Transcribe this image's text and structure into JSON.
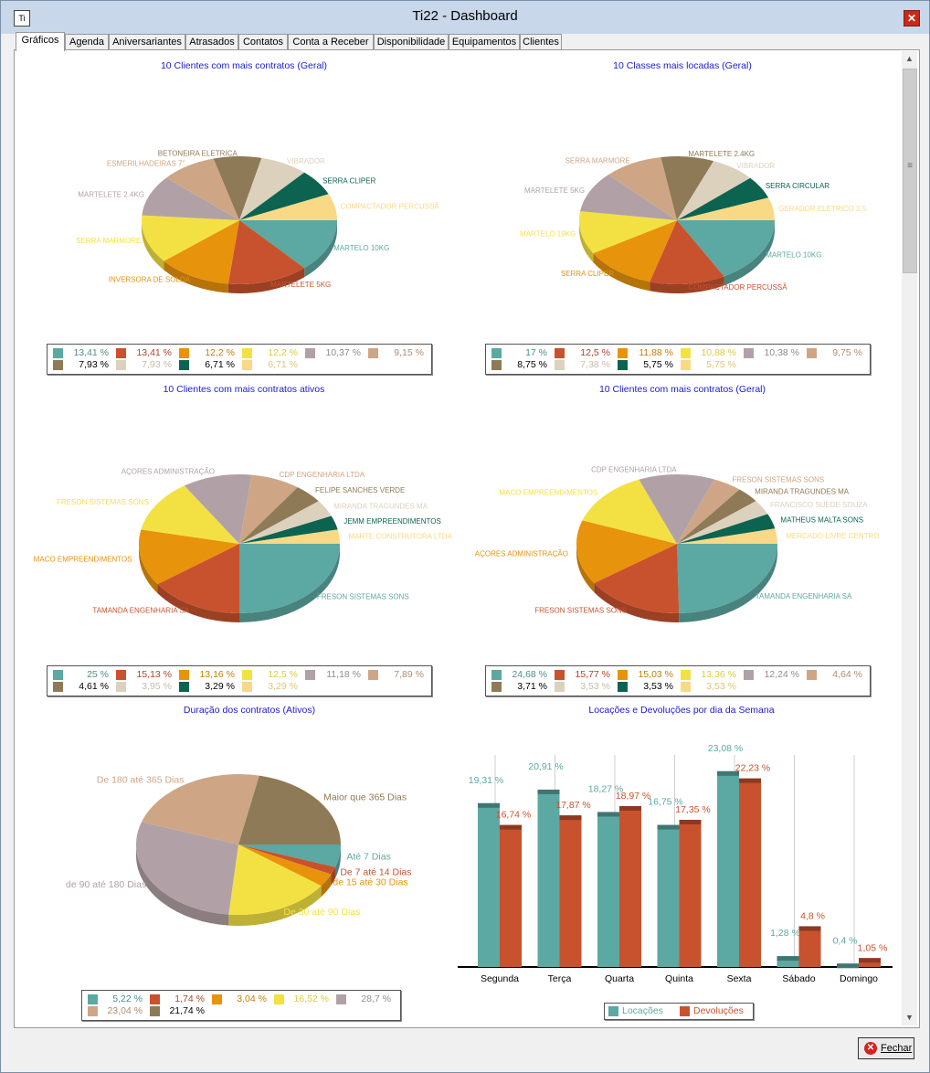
{
  "window": {
    "title": "Ti22 - Dashboard",
    "app_icon": "Ti",
    "close_glyph": "✕"
  },
  "tabs": [
    "Gráficos",
    "Agenda",
    "Aniversariantes",
    "Atrasados",
    "Contatos",
    "Conta a Receber",
    "Disponibilidade",
    "Equipamentos",
    "Clientes"
  ],
  "footer": {
    "close_label": "Fechar"
  },
  "colors": {
    "c1": "#5ca8a2",
    "c2": "#c8522e",
    "c3": "#e8930c",
    "c4": "#f3e144",
    "c5": "#b1a1a6",
    "c6": "#cea686",
    "c7": "#8e7a56",
    "c8": "#dcd1bd",
    "c9": "#0c6350",
    "c10": "#f9d985"
  },
  "chart_data": [
    {
      "type": "pie",
      "title": "10 Clientes com mais contratos (Geral)",
      "labels": [
        "MARTELO 10KG",
        "MARTELETE 5KG",
        "INVERSORA DE SOLDA",
        "SERRA MARMORE",
        "MARTELETE 2.4KG",
        "ESMERILHADEIRAS 7\"",
        "BETONEIRA ELETRICA",
        "VIBRADOR",
        "SERRA CLIPER",
        "COMPACTADOR PERCUSSÃ"
      ],
      "values": [
        13.41,
        13.41,
        12.2,
        12.2,
        10.37,
        9.15,
        7.93,
        7.93,
        6.71,
        6.71
      ],
      "legend": [
        "13,41 %",
        "13,41 %",
        "12,2 %",
        "12,2 %",
        "10,37 %",
        "9,15 %",
        "7,93 %",
        "7,93 %",
        "6,71 %",
        "6,71 %"
      ]
    },
    {
      "type": "pie",
      "title": "10 Classes mais locadas (Geral)",
      "labels": [
        "MARTELO 10KG",
        "COMPACTADOR PERCUSSÃ",
        "SERRA CLIPER",
        "MARTELO 19KG",
        "MARTELETE 5KG",
        "SERRA MARMORE",
        "MARTELETE 2.4KG",
        "VIBRADOR",
        "SERRA CIRCULAR",
        "GERADOR ELETRICO 3.5"
      ],
      "values": [
        17,
        12.5,
        11.88,
        10.88,
        10.38,
        9.75,
        8.75,
        7.38,
        5.75,
        5.75
      ],
      "legend": [
        "17 %",
        "12,5 %",
        "11,88 %",
        "10,88 %",
        "10,38 %",
        "9,75 %",
        "8,75 %",
        "7,38 %",
        "5,75 %",
        "5,75 %"
      ]
    },
    {
      "type": "pie",
      "title": "10 Clientes com mais contratos ativos",
      "labels": [
        "FRESON SISTEMAS SONS",
        "TAMANDA ENGENHARIA SA",
        "MACO EMPREENDIMENTOS",
        "FRESON SISTEMAS SONS",
        "AÇORES ADMINISTRAÇÃO",
        "CDP ENGENHARIA LTDA",
        "FELIPE SANCHES VERDE",
        "MIRANDA TRAGUNDES MA",
        "JEMM EMPREENDIMENTOS",
        "MARTE CONSTRUTORA LTDA"
      ],
      "values": [
        25,
        15.13,
        13.16,
        12.5,
        11.18,
        7.89,
        4.61,
        3.95,
        3.29,
        3.29
      ],
      "legend": [
        "25 %",
        "15,13 %",
        "13,16 %",
        "12,5 %",
        "11,18 %",
        "7,89 %",
        "4,61 %",
        "3,95 %",
        "3,29 %",
        "3,29 %"
      ]
    },
    {
      "type": "pie",
      "title": "10 Clientes com mais contratos (Geral)",
      "labels": [
        "TAMANDA ENGENHARIA SA",
        "FRESON SISTEMAS SONS",
        "AÇORES ADMINISTRAÇÃO",
        "MACO EMPREENDIMENTOS",
        "CDP ENGENHARIA LTDA",
        "FRESON SISTEMAS SONS",
        "MIRANDA TRAGUNDES MA",
        "FRANCISCO SUEDE SOUZA",
        "MATHEUS MALTA SONS",
        "MERCADO LIVRE CENTRO"
      ],
      "values": [
        24.68,
        15.77,
        15.03,
        13.36,
        12.24,
        4.64,
        3.71,
        3.53,
        3.53,
        3.53
      ],
      "legend": [
        "24,68 %",
        "15,77 %",
        "15,03 %",
        "13,36 %",
        "12,24 %",
        "4,64 %",
        "3,71 %",
        "3,53 %",
        "3,53 %",
        "3,53 %"
      ]
    },
    {
      "type": "pie",
      "title": "Duração dos contratos (Ativos)",
      "labels": [
        "Até 7 Dias",
        "De 7 até 14 Dias",
        "de 15 até 30 Dias",
        "De 30 até 90 Dias",
        "de 90 até 180 Dias",
        "De 180 até 365 Dias",
        "Maior que 365 Dias"
      ],
      "values": [
        5.22,
        1.74,
        3.04,
        16.52,
        28.7,
        23.04,
        21.74
      ],
      "legend": [
        "5,22 %",
        "1,74 %",
        "3,04 %",
        "16,52 %",
        "28,7 %",
        "23,04 %",
        "21,74 %"
      ]
    },
    {
      "type": "bar",
      "title": "Locações e Devoluções por dia da Semana",
      "categories": [
        "Segunda",
        "Terça",
        "Quarta",
        "Quinta",
        "Sexta",
        "Sábado",
        "Domingo"
      ],
      "series": [
        {
          "name": "Locações",
          "values": [
            19.31,
            20.91,
            18.27,
            16.75,
            23.08,
            1.28,
            0.4
          ],
          "labels": [
            "19,31 %",
            "20,91 %",
            "18,27 %",
            "16,75 %",
            "23,08 %",
            "1,28 %",
            "0,4 %"
          ]
        },
        {
          "name": "Devoluções",
          "values": [
            16.74,
            17.87,
            18.97,
            17.35,
            22.23,
            4.8,
            1.05
          ],
          "labels": [
            "16,74 %",
            "17,87 %",
            "18,97 %",
            "17,35 %",
            "22,23 %",
            "4,8 %",
            "1,05 %"
          ]
        }
      ],
      "ylim": [
        0,
        25
      ],
      "grid": true,
      "legend_placement": "bottom"
    }
  ]
}
